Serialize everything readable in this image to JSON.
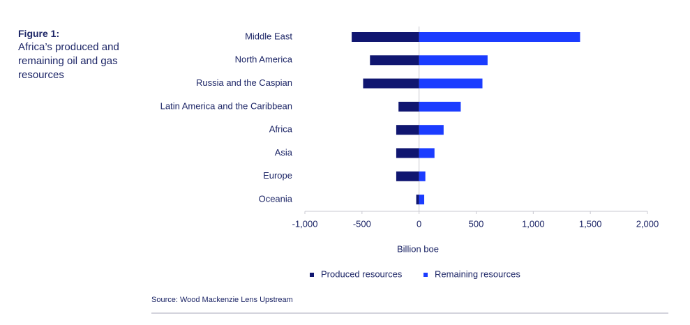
{
  "chart_data": {
    "type": "diverging-bar",
    "figure_label": "Figure 1:",
    "title": "Africa’s produced and remaining oil and gas resources",
    "categories": [
      "Middle East",
      "North America",
      "Russia and the Caspian",
      "Latin America and the Caribbean",
      "Africa",
      "Asia",
      "Europe",
      "Oceania"
    ],
    "series": [
      {
        "name": "Produced resources",
        "color": "#101670",
        "values": [
          -590,
          -430,
          -490,
          -180,
          -200,
          -200,
          -200,
          -25
        ]
      },
      {
        "name": "Remaining resources",
        "color": "#1b3cff",
        "values": [
          1410,
          600,
          555,
          365,
          215,
          135,
          55,
          45
        ]
      }
    ],
    "xlim": [
      -1000,
      2000
    ],
    "xticks": [
      {
        "value": -1000,
        "label": "-1,000"
      },
      -500,
      0,
      500,
      {
        "value": 1000,
        "label": "1,000"
      },
      {
        "value": 1500,
        "label": "1,500"
      },
      {
        "value": 2000,
        "label": "2,000"
      }
    ],
    "x_label": "Billion boe",
    "source": "Source: Wood Mackenzie Lens Upstream"
  }
}
